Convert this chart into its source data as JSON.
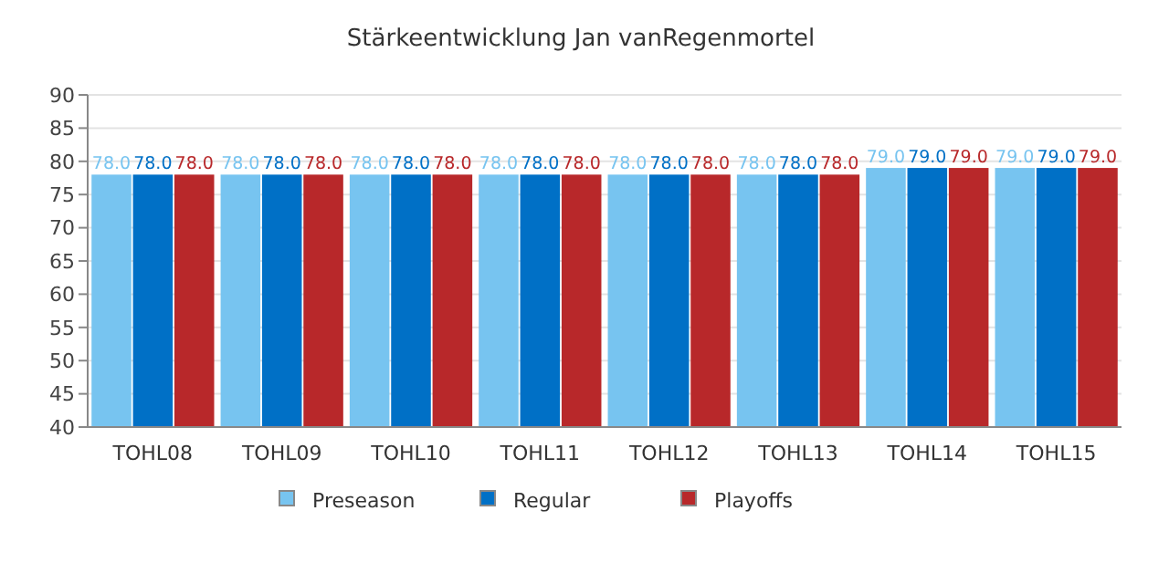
{
  "chart_data": {
    "type": "bar",
    "title": "Stärkeentwicklung Jan vanRegenmortel",
    "categories": [
      "TOHL08",
      "TOHL09",
      "TOHL10",
      "TOHL11",
      "TOHL12",
      "TOHL13",
      "TOHL14",
      "TOHL15"
    ],
    "series": [
      {
        "name": "Preseason",
        "color": "#77c4f0",
        "values": [
          78,
          78,
          78,
          78,
          78,
          78,
          79,
          79
        ],
        "value_labels": [
          "78.0",
          "78.0",
          "78.0",
          "78.0",
          "78.0",
          "78.0",
          "79.0",
          "79.0"
        ]
      },
      {
        "name": "Regular",
        "color": "#0070c6",
        "values": [
          78,
          78,
          78,
          78,
          78,
          78,
          79,
          79
        ],
        "value_labels": [
          "78.0",
          "78.0",
          "78.0",
          "78.0",
          "78.0",
          "78.0",
          "79.0",
          "79.0"
        ]
      },
      {
        "name": "Playoffs",
        "color": "#b8282a",
        "values": [
          78,
          78,
          78,
          78,
          78,
          78,
          79,
          79
        ],
        "value_labels": [
          "78.0",
          "78.0",
          "78.0",
          "78.0",
          "78.0",
          "78.0",
          "79.0",
          "79.0"
        ]
      }
    ],
    "ylim": [
      40,
      90
    ],
    "yticks": [
      40,
      45,
      50,
      55,
      60,
      65,
      70,
      75,
      80,
      85,
      90
    ],
    "grid": "y",
    "legend": "bottom"
  }
}
